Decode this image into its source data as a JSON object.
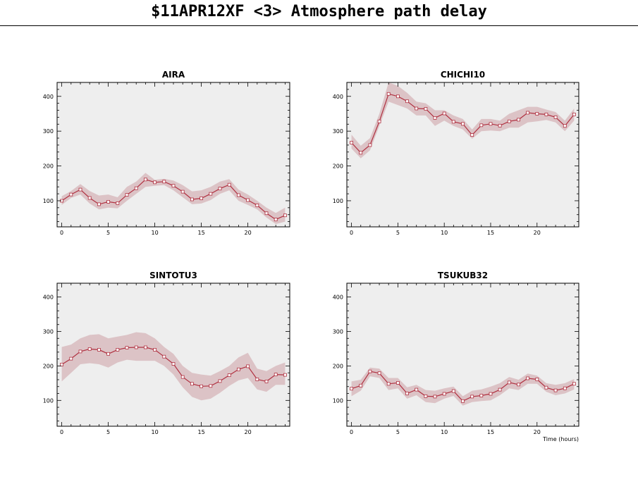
{
  "title": "$11APR12XF <3>  Atmosphere path delay",
  "colors": {
    "plot_background": "#eeeeee",
    "band_fill": "#dcc3c6",
    "line": "#b03040",
    "marker_fill": "#ffffff"
  },
  "chart_data": [
    {
      "type": "line",
      "title": "AIRA",
      "xlabel": "",
      "xlim": [
        -0.5,
        24.5
      ],
      "ylim": [
        25,
        440
      ],
      "xticks": [
        0,
        5,
        10,
        15,
        20
      ],
      "yticks": [
        100,
        200,
        300,
        400
      ],
      "x": [
        0,
        1,
        2,
        3,
        4,
        5,
        6,
        7,
        8,
        9,
        10,
        11,
        12,
        13,
        14,
        15,
        16,
        17,
        18,
        19,
        20,
        21,
        22,
        23,
        24
      ],
      "y": [
        100,
        118,
        132,
        108,
        90,
        97,
        93,
        117,
        136,
        161,
        153,
        155,
        143,
        126,
        104,
        107,
        120,
        135,
        146,
        116,
        102,
        87,
        64,
        46,
        58
      ],
      "band": {
        "upper": [
          113,
          128,
          148,
          128,
          115,
          118,
          110,
          140,
          155,
          180,
          160,
          163,
          158,
          145,
          127,
          130,
          140,
          155,
          162,
          132,
          118,
          100,
          80,
          65,
          80
        ],
        "lower": [
          88,
          108,
          118,
          92,
          75,
          80,
          78,
          100,
          120,
          140,
          143,
          145,
          130,
          110,
          90,
          92,
          102,
          120,
          130,
          100,
          88,
          75,
          52,
          33,
          40
        ]
      },
      "grid": false,
      "legend": "none"
    },
    {
      "type": "line",
      "title": "CHICHI10",
      "xlabel": "",
      "xlim": [
        -0.5,
        24.5
      ],
      "ylim": [
        25,
        440
      ],
      "xticks": [
        0,
        5,
        10,
        15,
        20
      ],
      "yticks": [
        100,
        200,
        300,
        400
      ],
      "x": [
        0,
        1,
        2,
        3,
        4,
        5,
        6,
        7,
        8,
        9,
        10,
        11,
        12,
        13,
        14,
        15,
        16,
        17,
        18,
        19,
        20,
        21,
        22,
        23,
        24
      ],
      "y": [
        267,
        238,
        260,
        328,
        407,
        400,
        386,
        365,
        364,
        338,
        351,
        327,
        321,
        289,
        317,
        321,
        316,
        328,
        333,
        353,
        350,
        348,
        340,
        315,
        348
      ],
      "band": {
        "upper": [
          290,
          258,
          280,
          350,
          440,
          430,
          410,
          385,
          380,
          360,
          360,
          345,
          335,
          305,
          335,
          335,
          330,
          350,
          360,
          370,
          370,
          362,
          355,
          330,
          365
        ],
        "lower": [
          250,
          222,
          245,
          315,
          385,
          375,
          365,
          345,
          345,
          315,
          330,
          315,
          305,
          278,
          300,
          302,
          300,
          310,
          310,
          325,
          328,
          332,
          325,
          300,
          330
        ]
      },
      "grid": false,
      "legend": "none"
    },
    {
      "type": "line",
      "title": "SINTOTU3",
      "xlabel": "",
      "xlim": [
        -0.5,
        24.5
      ],
      "ylim": [
        25,
        440
      ],
      "xticks": [
        0,
        5,
        10,
        15,
        20
      ],
      "yticks": [
        100,
        200,
        300,
        400
      ],
      "x": [
        0,
        1,
        2,
        3,
        4,
        5,
        6,
        7,
        8,
        9,
        10,
        11,
        12,
        13,
        14,
        15,
        16,
        17,
        18,
        19,
        20,
        21,
        22,
        23,
        24
      ],
      "y": [
        204,
        221,
        242,
        249,
        247,
        235,
        247,
        253,
        254,
        254,
        247,
        227,
        206,
        168,
        148,
        141,
        142,
        156,
        173,
        190,
        199,
        161,
        155,
        175,
        174
      ],
      "band": {
        "upper": [
          255,
          262,
          280,
          290,
          292,
          280,
          285,
          290,
          298,
          295,
          280,
          255,
          235,
          200,
          180,
          175,
          172,
          185,
          200,
          225,
          238,
          192,
          185,
          200,
          210
        ],
        "lower": [
          155,
          180,
          205,
          208,
          205,
          195,
          210,
          218,
          215,
          215,
          215,
          200,
          175,
          138,
          110,
          100,
          105,
          122,
          142,
          158,
          165,
          132,
          125,
          145,
          145
        ]
      },
      "grid": false,
      "legend": "none"
    },
    {
      "type": "line",
      "title": "TSUKUB32",
      "xlabel": "Time (hours)",
      "xlim": [
        -0.5,
        24.5
      ],
      "ylim": [
        25,
        440
      ],
      "xticks": [
        0,
        5,
        10,
        15,
        20
      ],
      "yticks": [
        100,
        200,
        300,
        400
      ],
      "x": [
        0,
        1,
        2,
        3,
        4,
        5,
        6,
        7,
        8,
        9,
        10,
        11,
        12,
        13,
        14,
        15,
        16,
        17,
        18,
        19,
        20,
        21,
        22,
        23,
        24
      ],
      "y": [
        134,
        143,
        184,
        179,
        148,
        151,
        120,
        131,
        112,
        111,
        119,
        127,
        98,
        111,
        114,
        119,
        131,
        152,
        146,
        164,
        161,
        137,
        129,
        135,
        148
      ],
      "band": {
        "upper": [
          155,
          160,
          195,
          192,
          165,
          165,
          138,
          145,
          130,
          128,
          135,
          140,
          112,
          128,
          132,
          140,
          150,
          168,
          160,
          178,
          172,
          150,
          145,
          150,
          162
        ],
        "lower": [
          112,
          128,
          170,
          165,
          130,
          135,
          105,
          115,
          95,
          92,
          105,
          113,
          85,
          95,
          98,
          100,
          115,
          135,
          130,
          148,
          148,
          125,
          115,
          120,
          132
        ]
      },
      "grid": false,
      "legend": "none"
    }
  ]
}
